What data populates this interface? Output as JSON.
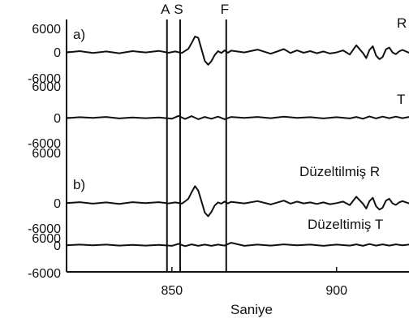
{
  "chart_data": {
    "type": "line",
    "xlabel": "Saniye",
    "x_ticks": [
      850,
      900
    ],
    "xlim": [
      818,
      922
    ],
    "y_tick_labels": [
      "6000",
      "0",
      "-6000"
    ],
    "ylim": [
      -6000,
      6000
    ],
    "panel_tags": [
      "a)",
      "b)"
    ],
    "markers": [
      {
        "label": "A",
        "x": 848.5
      },
      {
        "label": "S",
        "x": 852.5
      },
      {
        "label": "F",
        "x": 866.5
      }
    ],
    "series": [
      {
        "name": "R",
        "panel": "a)",
        "x": [
          818,
          822,
          826,
          830,
          834,
          838,
          842,
          846,
          849,
          851,
          853,
          854,
          855,
          856,
          857,
          858,
          859,
          860,
          861,
          862,
          863,
          864,
          865,
          866,
          867,
          868,
          872,
          876,
          880,
          884,
          886,
          888,
          890,
          892,
          894,
          896,
          898,
          900,
          902,
          904,
          906,
          908,
          909,
          910,
          911,
          912,
          913,
          914,
          915,
          916,
          917,
          918,
          919,
          920,
          922
        ],
        "values": [
          -200,
          300,
          -400,
          200,
          -500,
          300,
          -200,
          400,
          -300,
          200,
          -400,
          400,
          1200,
          3500,
          6000,
          5500,
          1000,
          -3500,
          -5000,
          -3600,
          -1200,
          300,
          -400,
          600,
          -300,
          500,
          -200,
          900,
          -700,
          1100,
          -400,
          600,
          -300,
          300,
          -500,
          200,
          -600,
          -200,
          600,
          -1000,
          2600,
          -400,
          -2400,
          800,
          2200,
          -1400,
          -2800,
          -2000,
          1000,
          1700,
          -200,
          -900,
          200,
          800,
          -300
        ]
      },
      {
        "name": "T",
        "panel": "a)",
        "x": [
          818,
          822,
          826,
          830,
          834,
          838,
          842,
          846,
          850,
          852,
          854,
          856,
          858,
          860,
          862,
          864,
          866,
          868,
          872,
          876,
          880,
          884,
          888,
          892,
          896,
          900,
          904,
          906,
          908,
          910,
          912,
          914,
          916,
          918,
          920,
          922
        ],
        "values": [
          -200,
          200,
          -100,
          300,
          -300,
          100,
          -200,
          100,
          -400,
          700,
          -500,
          600,
          -600,
          300,
          -400,
          400,
          -600,
          300,
          -100,
          300,
          -200,
          400,
          -100,
          200,
          -300,
          200,
          -300,
          300,
          -400,
          500,
          -300,
          400,
          -200,
          400,
          -200,
          300
        ]
      },
      {
        "name": "Düzeltilmiş R",
        "panel": "b)",
        "x": [
          818,
          822,
          826,
          830,
          834,
          838,
          842,
          846,
          849,
          851,
          853,
          854,
          855,
          856,
          857,
          858,
          859,
          860,
          861,
          862,
          863,
          864,
          865,
          866,
          867,
          868,
          872,
          876,
          880,
          884,
          886,
          888,
          890,
          892,
          894,
          896,
          898,
          900,
          902,
          904,
          906,
          908,
          909,
          910,
          911,
          912,
          913,
          914,
          915,
          916,
          917,
          918,
          919,
          920,
          922
        ],
        "values": [
          -100,
          300,
          -300,
          200,
          -400,
          300,
          -100,
          300,
          -200,
          200,
          -300,
          600,
          1600,
          4200,
          6500,
          4800,
          500,
          -3800,
          -5200,
          -3500,
          -1000,
          200,
          -300,
          500,
          -200,
          400,
          -200,
          700,
          -600,
          900,
          -300,
          500,
          -200,
          200,
          -400,
          200,
          -500,
          -100,
          500,
          -900,
          2400,
          -300,
          -2200,
          700,
          2000,
          -1300,
          -2600,
          -1900,
          900,
          1600,
          -200,
          -800,
          200,
          700,
          -200
        ]
      },
      {
        "name": "Düzeltimiş T",
        "panel": "b)",
        "x": [
          818,
          822,
          826,
          830,
          834,
          838,
          842,
          846,
          850,
          852,
          854,
          856,
          858,
          860,
          862,
          864,
          866,
          868,
          872,
          876,
          880,
          884,
          888,
          892,
          896,
          900,
          904,
          906,
          908,
          910,
          912,
          914,
          916,
          918,
          920,
          922
        ],
        "values": [
          -100,
          200,
          -100,
          200,
          -200,
          100,
          -200,
          100,
          -300,
          500,
          -400,
          300,
          -300,
          200,
          -300,
          200,
          -200,
          900,
          -300,
          200,
          -200,
          300,
          -100,
          200,
          -300,
          200,
          -200,
          300,
          -300,
          400,
          -200,
          300,
          -200,
          300,
          -100,
          200
        ]
      }
    ]
  }
}
